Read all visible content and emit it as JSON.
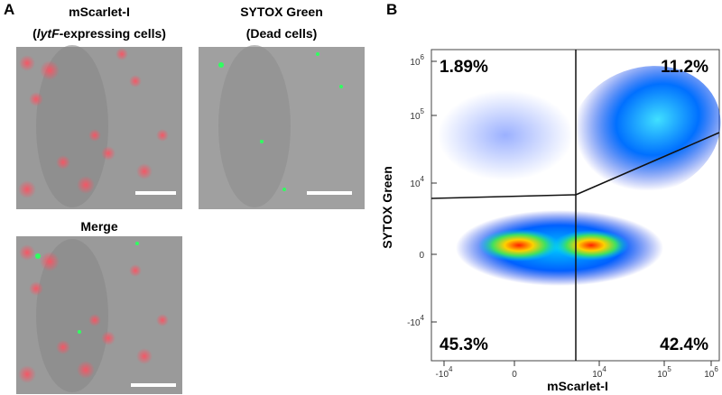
{
  "panel_a": {
    "label": "A",
    "images": [
      {
        "title": "mScarlet-I",
        "subtitle": {
          "pre": "(",
          "italic": "lytF",
          "post": "-expressing cells)"
        }
      },
      {
        "title": "SYTOX Green",
        "subtitle": {
          "pre": "(Dead cells)"
        }
      },
      {
        "title": "Merge"
      }
    ]
  },
  "panel_b": {
    "label": "B",
    "x_label": "mScarlet-I",
    "y_label": "SYTOX Green",
    "quadrants": {
      "upper_left": "1.89%",
      "upper_right": "11.2%",
      "lower_left": "45.3%",
      "lower_right": "42.4%"
    },
    "y_ticks": [
      {
        "base": "10",
        "exp": "6"
      },
      {
        "base": "10",
        "exp": "5"
      },
      {
        "base": "10",
        "exp": "4"
      },
      {
        "base": "0"
      },
      {
        "base": "-10",
        "exp": "4"
      }
    ],
    "x_ticks": [
      {
        "base": "-10",
        "exp": "4"
      },
      {
        "base": "0"
      },
      {
        "base": "10",
        "exp": "4"
      },
      {
        "base": "10",
        "exp": "5"
      },
      {
        "base": "10",
        "exp": "6"
      }
    ]
  }
}
